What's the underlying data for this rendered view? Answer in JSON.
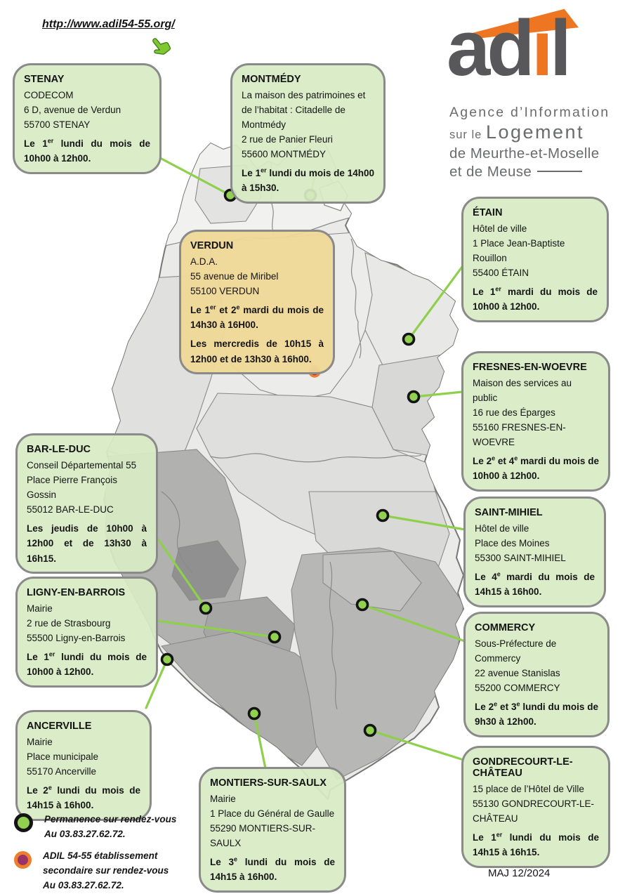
{
  "header": {
    "url": "http://www.adil54-55.org/"
  },
  "logo": {
    "word_gray1": "ad",
    "word_orange": "i",
    "word_gray2": "l",
    "subtitle_line1": "Agence d’Information",
    "subtitle_line2_small": "sur le ",
    "subtitle_line2_large": "Logement",
    "subtitle_line3": "de Meurthe-et-Moselle",
    "subtitle_line4": "et de Meuse"
  },
  "colors": {
    "box_green": "#d8ebc4",
    "box_orange": "#eed797",
    "box_border_gray": "#8a8a8a",
    "marker_green": "#92d050",
    "marker_secondary_fill": "#993366",
    "marker_secondary_ring": "#ee7d2f",
    "connector_green": "#8ed04c",
    "connector_orange": "#fbb034",
    "logo_gray": "#58585a",
    "logo_orange": "#ee7623",
    "subtitle_gray": "#6a6b6e"
  },
  "callouts": [
    {
      "id": "stenay",
      "variant": "green",
      "title": "STENAY",
      "address": [
        "CODECOM",
        "6 D, avenue de Verdun",
        "55700 STENAY"
      ],
      "schedules": [
        [
          {
            "t": "Le 1"
          },
          {
            "sup": "er"
          },
          {
            "t": " lundi du mois de 10h00 à 12h00."
          }
        ]
      ]
    },
    {
      "id": "montmedy",
      "variant": "green",
      "title": "MONTMÉDY",
      "address": [
        "La maison des patrimoines et de l’habitat : Citadelle de Montmédy",
        "2 rue de Panier Fleuri",
        "55600 MONTMÉDY"
      ],
      "schedules": [
        [
          {
            "t": "Le 1"
          },
          {
            "sup": "er"
          },
          {
            "t": " lundi du mois de 14h00 à 15h30."
          }
        ]
      ]
    },
    {
      "id": "etain",
      "variant": "green",
      "title": "ÉTAIN",
      "address": [
        "Hôtel de ville",
        "1 Place Jean-Baptiste Rouillon",
        "55400 ÉTAIN"
      ],
      "schedules": [
        [
          {
            "t": "Le 1"
          },
          {
            "sup": "er"
          },
          {
            "t": " mardi du mois de 10h00 à 12h00."
          }
        ]
      ]
    },
    {
      "id": "verdun",
      "variant": "orange",
      "title": "VERDUN",
      "address": [
        "A.D.A.",
        "55 avenue de Miribel",
        "55100 VERDUN"
      ],
      "schedules": [
        [
          {
            "t": "Le 1"
          },
          {
            "sup": "er"
          },
          {
            "t": " et 2"
          },
          {
            "sup": "e"
          },
          {
            "t": " mardi du mois de 14h30 à 16H00."
          }
        ],
        [
          {
            "t": "Les mercredis de 10h15 à 12h00 et de 13h30 à 16h00."
          }
        ]
      ]
    },
    {
      "id": "fresnes",
      "variant": "green",
      "title": "FRESNES-EN-WOEVRE",
      "address": [
        "Maison des services au public",
        "16 rue des Éparges",
        "55160 FRESNES-EN-WOEVRE"
      ],
      "schedules": [
        [
          {
            "t": "Le 2"
          },
          {
            "sup": "e"
          },
          {
            "t": " et 4"
          },
          {
            "sup": "e"
          },
          {
            "t": " mardi du mois de 10h00 à 12h00."
          }
        ]
      ]
    },
    {
      "id": "barleduc",
      "variant": "green",
      "title": "BAR-LE-DUC",
      "address": [
        "Conseil Départemental 55",
        "Place Pierre François Gossin",
        "55012 BAR-LE-DUC"
      ],
      "schedules": [
        [
          {
            "t": "Les jeudis de 10h00 à 12h00 et de 13h30 à 16h15."
          }
        ]
      ]
    },
    {
      "id": "saintmihiel",
      "variant": "green",
      "title": "SAINT-MIHIEL",
      "address": [
        "Hôtel de ville",
        "Place des Moines",
        "55300 SAINT-MIHIEL"
      ],
      "schedules": [
        [
          {
            "t": "Le 4"
          },
          {
            "sup": "e"
          },
          {
            "t": " mardi du mois de 14h15 à 16h00."
          }
        ]
      ]
    },
    {
      "id": "ligny",
      "variant": "green",
      "title": "LIGNY-EN-BARROIS",
      "address": [
        "Mairie",
        "2 rue de Strasbourg",
        "55500 Ligny-en-Barrois"
      ],
      "schedules": [
        [
          {
            "t": "Le 1"
          },
          {
            "sup": "er"
          },
          {
            "t": " lundi du mois de 10h00 à 12h00."
          }
        ]
      ]
    },
    {
      "id": "commercy",
      "variant": "green",
      "title": "COMMERCY",
      "address": [
        "Sous-Préfecture de Commercy",
        "22 avenue Stanislas",
        "55200 COMMERCY"
      ],
      "schedules": [
        [
          {
            "t": "Le 2"
          },
          {
            "sup": "e"
          },
          {
            "t": " et 3"
          },
          {
            "sup": "e"
          },
          {
            "t": " lundi du mois de 9h30 à 12h00."
          }
        ]
      ]
    },
    {
      "id": "ancerville",
      "variant": "green",
      "title": "ANCERVILLE",
      "address": [
        "Mairie",
        "Place municipale",
        "55170 Ancerville"
      ],
      "schedules": [
        [
          {
            "t": "Le 2"
          },
          {
            "sup": "e"
          },
          {
            "t": " lundi du mois de 14h15 à 16h00."
          }
        ]
      ]
    },
    {
      "id": "montiers",
      "variant": "green",
      "title": "MONTIERS-SUR-SAULX",
      "address": [
        "Mairie",
        "1 Place du Général de Gaulle",
        "55290 MONTIERS-SUR-SAULX"
      ],
      "schedules": [
        [
          {
            "t": "Le 3"
          },
          {
            "sup": "e"
          },
          {
            "t": " lundi du mois de 14h15 à 16h00."
          }
        ]
      ]
    },
    {
      "id": "gondrecourt",
      "variant": "green",
      "title": "GONDRECOURT-LE-CHÂTEAU",
      "address": [
        "15 place de l’Hôtel de Ville",
        "55130 GONDRECOURT-LE-CHÂTEAU"
      ],
      "schedules": [
        [
          {
            "t": "Le 1"
          },
          {
            "sup": "er"
          },
          {
            "t": " lundi du mois de 14h15 à 16h15."
          }
        ]
      ]
    }
  ],
  "legend": [
    {
      "id": "permanence",
      "lines": [
        "Permanence sur rendez-vous",
        "Au 03.83.27.62.72."
      ]
    },
    {
      "id": "secondaire",
      "lines": [
        "ADIL 54-55 établissement",
        "secondaire sur rendez-vous",
        "Au 03.83.27.62.72."
      ]
    }
  ],
  "footer": {
    "maj": "MAJ 12/2024"
  }
}
